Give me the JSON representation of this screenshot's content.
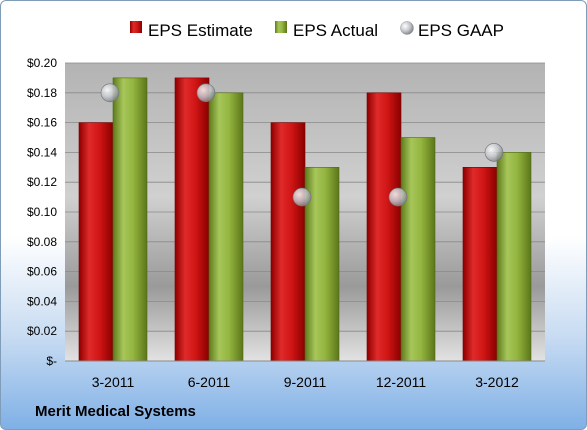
{
  "company": "Merit Medical Systems",
  "colors": {
    "estimate": "#cc1111",
    "actual": "#8fb23a",
    "gaap": "#b8bcc2"
  },
  "chart_data": {
    "type": "bar",
    "categories": [
      "3-2011",
      "6-2011",
      "9-2011",
      "12-2011",
      "3-2012"
    ],
    "series": [
      {
        "name": "EPS Estimate",
        "type": "bar",
        "values": [
          0.16,
          0.19,
          0.16,
          0.18,
          0.13
        ]
      },
      {
        "name": "EPS Actual",
        "type": "bar",
        "values": [
          0.19,
          0.18,
          0.13,
          0.15,
          0.14
        ]
      },
      {
        "name": "EPS GAAP",
        "type": "scatter",
        "values": [
          0.18,
          0.18,
          0.11,
          0.11,
          0.14
        ]
      }
    ],
    "yticks": [
      "$-",
      "$0.02",
      "$0.04",
      "$0.06",
      "$0.08",
      "$0.10",
      "$0.12",
      "$0.14",
      "$0.16",
      "$0.18",
      "$0.20"
    ],
    "ylim": [
      0,
      0.2
    ],
    "legend_position": "top",
    "grid": true
  }
}
